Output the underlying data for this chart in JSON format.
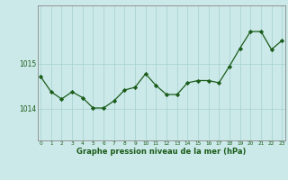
{
  "x": [
    0,
    1,
    2,
    3,
    4,
    5,
    6,
    7,
    8,
    9,
    10,
    11,
    12,
    13,
    14,
    15,
    16,
    17,
    18,
    19,
    20,
    21,
    22,
    23
  ],
  "y": [
    1014.72,
    1014.38,
    1014.22,
    1014.38,
    1014.25,
    1014.02,
    1014.02,
    1014.18,
    1014.42,
    1014.48,
    1014.78,
    1014.52,
    1014.32,
    1014.32,
    1014.58,
    1014.63,
    1014.63,
    1014.58,
    1014.95,
    1015.35,
    1015.72,
    1015.72,
    1015.32,
    1015.52
  ],
  "line_color": "#1a5c1a",
  "marker_color": "#1a5c1a",
  "bg_color": "#cce9e9",
  "grid_color": "#aad4d4",
  "xlabel": "Graphe pression niveau de la mer (hPa)",
  "xlabel_color": "#1a5c1a",
  "yticks": [
    1014,
    1015
  ],
  "ylim": [
    1013.3,
    1016.3
  ],
  "xlim": [
    -0.3,
    23.3
  ]
}
